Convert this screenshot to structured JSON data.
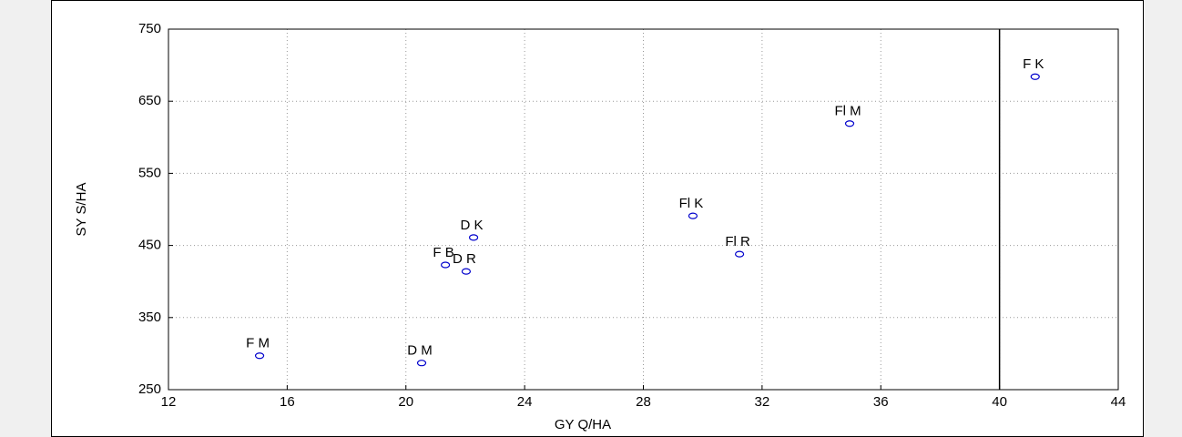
{
  "chart_data": {
    "type": "scatter",
    "x_label": "GY Q/HA",
    "y_label": "SY S/HA",
    "labels": [
      "F K",
      "Fl M",
      "Fl K",
      "Fl R",
      "D K",
      "F B",
      "D R",
      "F M",
      "D M"
    ],
    "x": [
      41.2,
      34.95,
      29.67,
      31.24,
      22.28,
      21.33,
      22.03,
      15.07,
      20.53
    ],
    "values": [
      684,
      619,
      491,
      438,
      461,
      423,
      414,
      297,
      287
    ],
    "color": "#0000cc",
    "xlim": [
      12,
      44
    ],
    "xticks": [
      12,
      16,
      20,
      24,
      28,
      32,
      36,
      40,
      44
    ],
    "ylim": [
      250,
      750
    ],
    "yticks": [
      250,
      350,
      450,
      550,
      650,
      750
    ],
    "reference_x": 40,
    "grid": true
  }
}
